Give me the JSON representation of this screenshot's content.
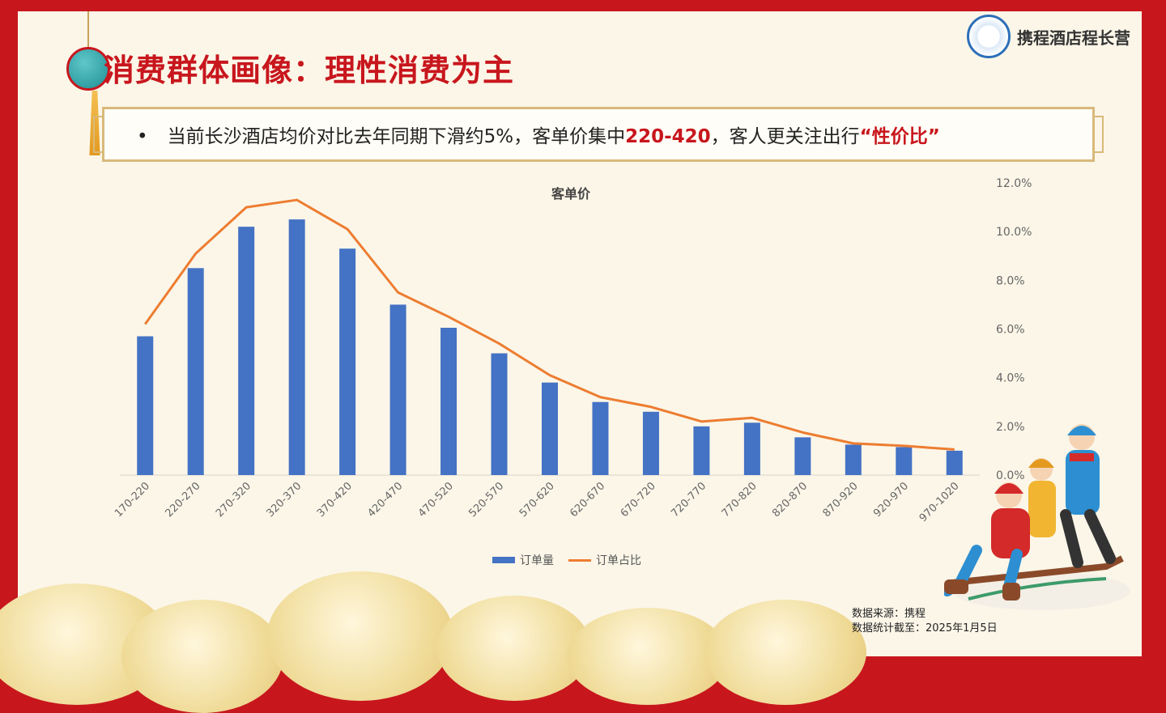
{
  "title": "消费群体画像：理性消费为主",
  "logo_text": "携程酒店程长营",
  "banner": {
    "bullet": "•",
    "text_before": "当前长沙酒店均价对比去年同期下滑约5%，客单价集中",
    "highlight_range": "220-420",
    "text_middle": "，客人更关注出行",
    "highlight_phrase": "“性价比”"
  },
  "chart_data": {
    "type": "bar",
    "title": "客单价",
    "categories": [
      "170-220",
      "220-270",
      "270-320",
      "320-370",
      "370-420",
      "420-470",
      "470-520",
      "520-570",
      "570-620",
      "620-670",
      "670-720",
      "720-770",
      "770-820",
      "820-870",
      "870-920",
      "920-970",
      "970-1020"
    ],
    "series": [
      {
        "name": "订单量",
        "kind": "bar",
        "values": [
          5.7,
          8.5,
          10.2,
          10.5,
          9.3,
          7.0,
          6.05,
          5.0,
          3.8,
          3.0,
          2.6,
          2.0,
          2.15,
          1.55,
          1.25,
          1.15,
          1.0
        ]
      },
      {
        "name": "订单占比",
        "kind": "line",
        "values": [
          6.2,
          9.1,
          11.0,
          11.3,
          10.1,
          7.5,
          6.5,
          5.4,
          4.1,
          3.2,
          2.8,
          2.2,
          2.35,
          1.75,
          1.3,
          1.2,
          1.05
        ]
      }
    ],
    "y_right_ticks": [
      "0.0%",
      "2.0%",
      "4.0%",
      "6.0%",
      "8.0%",
      "10.0%",
      "12.0%"
    ],
    "ylim": [
      0,
      12
    ],
    "legend_position": "bottom",
    "colors": {
      "bar": "#4472c4",
      "line": "#ed7d31"
    }
  },
  "source": {
    "line1": "数据来源：携程",
    "line2": "数据统计截至：2025年1月5日"
  }
}
